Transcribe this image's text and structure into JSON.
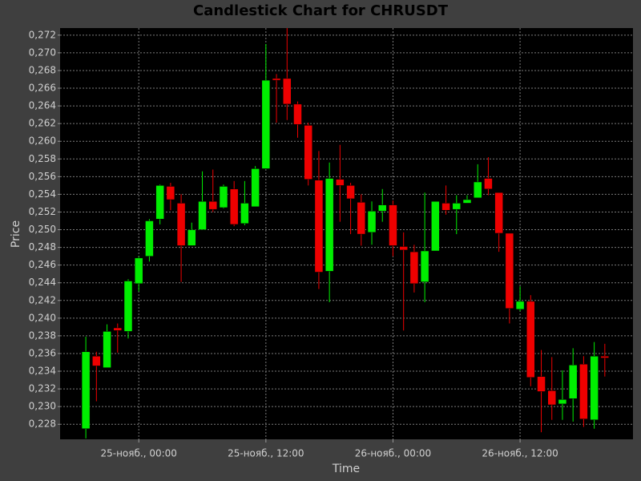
{
  "chart_data": {
    "type": "candlestick",
    "title": "Candlestick Chart for CHRUSDT",
    "x_label": "Time",
    "y_label": "Price",
    "x": [
      "24-нояб., 19:00",
      "24-нояб., 20:00",
      "24-нояб., 21:00",
      "24-нояб., 22:00",
      "24-нояб., 23:00",
      "25-нояб., 00:00",
      "25-нояб., 01:00",
      "25-нояб., 02:00",
      "25-нояб., 03:00",
      "25-нояб., 04:00",
      "25-нояб., 05:00",
      "25-нояб., 06:00",
      "25-нояб., 07:00",
      "25-нояб., 08:00",
      "25-нояб., 09:00",
      "25-нояб., 10:00",
      "25-нояб., 11:00",
      "25-нояб., 12:00",
      "25-нояб., 13:00",
      "25-нояб., 14:00",
      "25-нояб., 15:00",
      "25-нояб., 16:00",
      "25-нояб., 17:00",
      "25-нояб., 18:00",
      "25-нояб., 19:00",
      "25-нояб., 20:00",
      "25-нояб., 21:00",
      "25-нояб., 22:00",
      "25-нояб., 23:00",
      "26-нояб., 00:00",
      "26-нояб., 01:00",
      "26-нояб., 02:00",
      "26-нояб., 03:00",
      "26-нояб., 04:00",
      "26-нояб., 05:00",
      "26-нояб., 06:00",
      "26-нояб., 07:00",
      "26-нояб., 08:00",
      "26-нояб., 09:00",
      "26-нояб., 10:00",
      "26-нояб., 11:00",
      "26-нояб., 12:00",
      "26-нояб., 13:00",
      "26-нояб., 14:00",
      "26-нояб., 15:00",
      "26-нояб., 16:00",
      "26-нояб., 17:00",
      "26-нояб., 18:00",
      "26-нояб., 19:00",
      "26-нояб., 20:00"
    ],
    "open": [
      0.2275,
      0.2357,
      0.2344,
      0.2389,
      0.2385,
      0.2439,
      0.247,
      0.2512,
      0.2549,
      0.253,
      0.2482,
      0.25,
      0.2532,
      0.2525,
      0.2546,
      0.2507,
      0.2526,
      0.2569,
      0.2671,
      0.2671,
      0.2642,
      0.2618,
      0.2556,
      0.2453,
      0.2557,
      0.255,
      0.2531,
      0.2497,
      0.2521,
      0.2528,
      0.2481,
      0.2475,
      0.2441,
      0.2476,
      0.253,
      0.2523,
      0.253,
      0.2536,
      0.2558,
      0.2542,
      0.2496,
      0.241,
      0.2419,
      0.2334,
      0.2318,
      0.2303,
      0.2309,
      0.2348,
      0.2285,
      0.2357
    ],
    "high": [
      0.2379,
      0.2362,
      0.2393,
      0.2394,
      0.2444,
      0.247,
      0.2512,
      0.2551,
      0.2553,
      0.254,
      0.2508,
      0.2566,
      0.2568,
      0.2551,
      0.2555,
      0.2555,
      0.2572,
      0.271,
      0.2676,
      0.2728,
      0.2645,
      0.2621,
      0.2589,
      0.2576,
      0.2596,
      0.2553,
      0.254,
      0.2532,
      0.2546,
      0.2533,
      0.2497,
      0.2483,
      0.2542,
      0.2532,
      0.255,
      0.2539,
      0.2539,
      0.2574,
      0.2582,
      0.2542,
      0.2496,
      0.2436,
      0.2426,
      0.2364,
      0.2356,
      0.2341,
      0.2366,
      0.2357,
      0.2373,
      0.2371
    ],
    "low": [
      0.2264,
      0.2306,
      0.2344,
      0.2361,
      0.2377,
      0.243,
      0.2464,
      0.2506,
      0.2522,
      0.2441,
      0.2482,
      0.25,
      0.252,
      0.2524,
      0.2504,
      0.2505,
      0.2526,
      0.2569,
      0.2621,
      0.2624,
      0.2604,
      0.255,
      0.2433,
      0.2418,
      0.2509,
      0.2495,
      0.2482,
      0.2483,
      0.2509,
      0.247,
      0.2386,
      0.2429,
      0.2418,
      0.2476,
      0.2517,
      0.2495,
      0.253,
      0.2536,
      0.2539,
      0.2475,
      0.2394,
      0.2408,
      0.2323,
      0.2271,
      0.2285,
      0.2285,
      0.2283,
      0.2277,
      0.2275,
      0.2334
    ],
    "close": [
      0.2362,
      0.2346,
      0.2385,
      0.2386,
      0.2442,
      0.2468,
      0.251,
      0.255,
      0.2534,
      0.2482,
      0.25,
      0.2532,
      0.2523,
      0.2549,
      0.2506,
      0.253,
      0.2569,
      0.2669,
      0.2669,
      0.2642,
      0.2619,
      0.2557,
      0.2452,
      0.2558,
      0.255,
      0.2535,
      0.2495,
      0.2521,
      0.2528,
      0.2482,
      0.2477,
      0.2439,
      0.2476,
      0.2532,
      0.2522,
      0.253,
      0.2534,
      0.2554,
      0.2546,
      0.2496,
      0.2411,
      0.2419,
      0.2333,
      0.2317,
      0.2302,
      0.2308,
      0.2347,
      0.2286,
      0.2357,
      0.2355
    ],
    "up_color": "#00ee00",
    "down_color": "#ee0000",
    "ylim": [
      0.2263,
      0.2728
    ],
    "yticks": [
      {
        "value": 0.228,
        "label": "0,228"
      },
      {
        "value": 0.23,
        "label": "0,230"
      },
      {
        "value": 0.232,
        "label": "0,232"
      },
      {
        "value": 0.234,
        "label": "0,234"
      },
      {
        "value": 0.236,
        "label": "0,236"
      },
      {
        "value": 0.238,
        "label": "0,238"
      },
      {
        "value": 0.24,
        "label": "0,240"
      },
      {
        "value": 0.242,
        "label": "0,242"
      },
      {
        "value": 0.244,
        "label": "0,244"
      },
      {
        "value": 0.246,
        "label": "0,246"
      },
      {
        "value": 0.248,
        "label": "0,248"
      },
      {
        "value": 0.25,
        "label": "0,250"
      },
      {
        "value": 0.252,
        "label": "0,252"
      },
      {
        "value": 0.254,
        "label": "0,254"
      },
      {
        "value": 0.256,
        "label": "0,256"
      },
      {
        "value": 0.258,
        "label": "0,258"
      },
      {
        "value": 0.26,
        "label": "0,260"
      },
      {
        "value": 0.262,
        "label": "0,262"
      },
      {
        "value": 0.264,
        "label": "0,264"
      },
      {
        "value": 0.266,
        "label": "0,266"
      },
      {
        "value": 0.268,
        "label": "0,268"
      },
      {
        "value": 0.27,
        "label": "0,270"
      },
      {
        "value": 0.272,
        "label": "0,272"
      }
    ],
    "xticks": [
      "25-нояб., 00:00",
      "25-нояб., 12:00",
      "26-нояб., 00:00",
      "26-нояб., 12:00"
    ],
    "grid": true
  }
}
